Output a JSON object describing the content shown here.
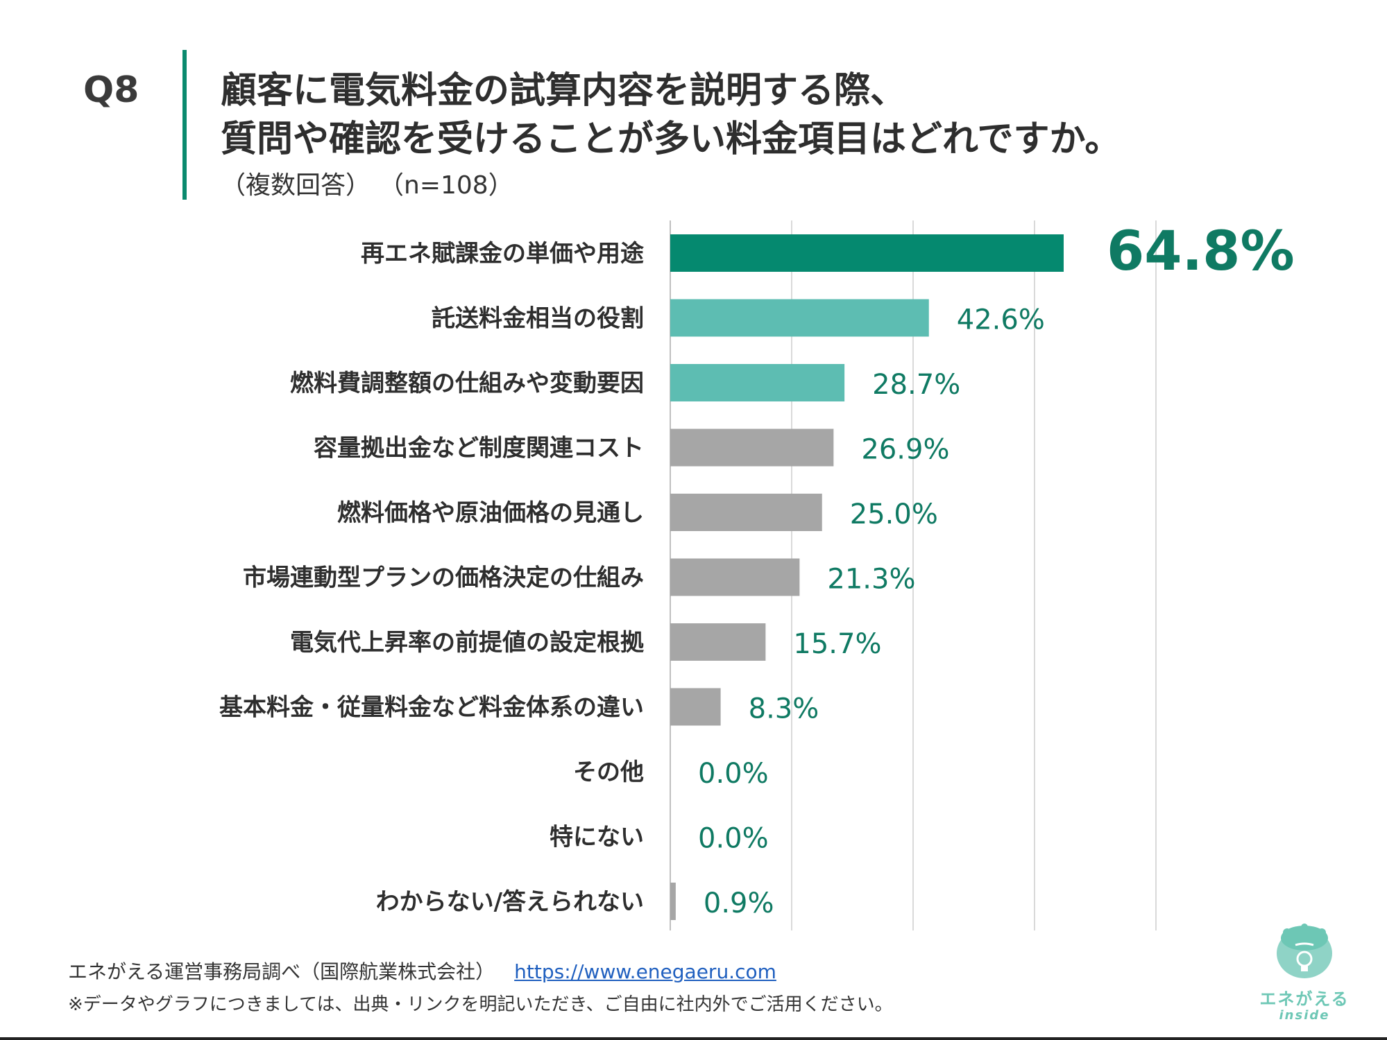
{
  "question": {
    "number": "Q8",
    "title_line1": "顧客に電気料金の試算内容を説明する際、",
    "title_line2": "質問や確認を受けることが多い料金項目はどれですか。",
    "note": "（複数回答）",
    "sample": "（n=108）"
  },
  "colors": {
    "accent": "#0a8a6e",
    "top_bar": "#05896f",
    "mid_bar": "#5dbdb2",
    "other_bar": "#a6a6a6",
    "label_green": "#0f7a63",
    "grid": "#d9d9d9"
  },
  "chart_data": {
    "type": "bar",
    "orientation": "horizontal",
    "categories": [
      "再エネ賦課金の単価や用途",
      "託送料金相当の役割",
      "燃料費調整額の仕組みや変動要因",
      "容量拠出金など制度関連コスト",
      "燃料価格や原油価格の見通し",
      "市場連動型プランの価格決定の仕組み",
      "電気代上昇率の前提値の設定根拠",
      "基本料金・従量料金など料金体系の違い",
      "その他",
      "特にない",
      "わからない/答えられない"
    ],
    "values": [
      64.8,
      42.6,
      28.7,
      26.9,
      25.0,
      21.3,
      15.7,
      8.3,
      0.0,
      0.0,
      0.9
    ],
    "value_labels": [
      "64.8%",
      "42.6%",
      "28.7%",
      "26.9%",
      "25.0%",
      "21.3%",
      "15.7%",
      "8.3%",
      "0.0%",
      "0.0%",
      "0.9%"
    ],
    "bar_colors": [
      "#05896f",
      "#5dbdb2",
      "#5dbdb2",
      "#a6a6a6",
      "#a6a6a6",
      "#a6a6a6",
      "#a6a6a6",
      "#a6a6a6",
      "#a6a6a6",
      "#a6a6a6",
      "#a6a6a6"
    ],
    "xlim": [
      0,
      100
    ],
    "gridlines": [
      0,
      20,
      40,
      60,
      80
    ],
    "grid": true,
    "legend": "none"
  },
  "footer": {
    "source": "エネがえる運営事務局調べ（国際航業株式会社）",
    "link": "https://www.enegaeru.com",
    "notice": "※データやグラフにつきましては、出典・リンクを明記いただき、ご自由に社内外でご活用ください。"
  },
  "logo": {
    "name": "エネがえる",
    "sub": "inside"
  }
}
